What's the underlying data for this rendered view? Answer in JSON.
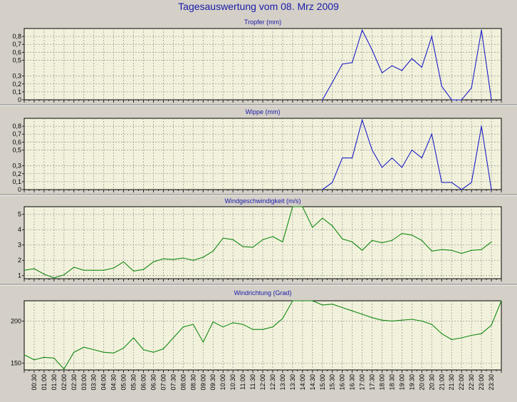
{
  "title": "Tagesauswertung vom 08. Mrz 2009",
  "chart_data": [
    {
      "type": "line",
      "title": "Tropfer (mm)",
      "color": "#1c1cc8",
      "ylim": [
        0,
        0.9
      ],
      "yticks": [
        0,
        0.1,
        0.2,
        0.3,
        0.5,
        0.6,
        0.7,
        0.8
      ],
      "ytick_labels": [
        "0",
        "0,1",
        "0,2",
        "0,3",
        "0,5",
        "0,6",
        "0,7",
        "0,8"
      ],
      "points": [
        [
          "15:00",
          0
        ],
        [
          "15:30",
          0.22
        ],
        [
          "16:00",
          0.45
        ],
        [
          "16:30",
          0.47
        ],
        [
          "17:00",
          0.88
        ],
        [
          "17:30",
          0.63
        ],
        [
          "18:00",
          0.34
        ],
        [
          "18:30",
          0.43
        ],
        [
          "19:00",
          0.37
        ],
        [
          "19:30",
          0.52
        ],
        [
          "20:00",
          0.41
        ],
        [
          "20:30",
          0.8
        ],
        [
          "21:00",
          0.17
        ],
        [
          "21:30",
          0
        ],
        [
          "22:00",
          0
        ],
        [
          "22:30",
          0.15
        ],
        [
          "23:00",
          0.88
        ],
        [
          "23:30",
          0
        ]
      ]
    },
    {
      "type": "line",
      "title": "Wippe (mm)",
      "color": "#1c1cc8",
      "ylim": [
        0,
        0.9
      ],
      "yticks": [
        0,
        0.1,
        0.2,
        0.3,
        0.5,
        0.6,
        0.7,
        0.8
      ],
      "ytick_labels": [
        "0",
        "0,1",
        "0,2",
        "0,3",
        "0,5",
        "0,6",
        "0,7",
        "0,8"
      ],
      "points": [
        [
          "15:00",
          0
        ],
        [
          "15:30",
          0.09
        ],
        [
          "16:00",
          0.4
        ],
        [
          "16:30",
          0.4
        ],
        [
          "17:00",
          0.88
        ],
        [
          "17:30",
          0.5
        ],
        [
          "18:00",
          0.28
        ],
        [
          "18:30",
          0.4
        ],
        [
          "19:00",
          0.28
        ],
        [
          "19:30",
          0.5
        ],
        [
          "20:00",
          0.4
        ],
        [
          "20:30",
          0.7
        ],
        [
          "21:00",
          0.09
        ],
        [
          "21:30",
          0.09
        ],
        [
          "22:00",
          0
        ],
        [
          "22:30",
          0.09
        ],
        [
          "23:00",
          0.8
        ],
        [
          "23:30",
          0
        ]
      ]
    },
    {
      "type": "line",
      "title": "Windgeschwindigkeit (m/s)",
      "color": "#128812",
      "ylim": [
        0.8,
        5.5
      ],
      "yticks": [
        1,
        2,
        3,
        4,
        5
      ],
      "ytick_labels": [
        "1",
        "2",
        "3",
        "4",
        "5"
      ],
      "points": [
        [
          "00:00",
          1.35
        ],
        [
          "00:30",
          1.45
        ],
        [
          "01:00",
          1.1
        ],
        [
          "01:30",
          0.85
        ],
        [
          "02:00",
          1.05
        ],
        [
          "02:30",
          1.55
        ],
        [
          "03:00",
          1.35
        ],
        [
          "03:30",
          1.35
        ],
        [
          "04:00",
          1.35
        ],
        [
          "04:30",
          1.5
        ],
        [
          "05:00",
          1.9
        ],
        [
          "05:30",
          1.3
        ],
        [
          "06:00",
          1.4
        ],
        [
          "06:30",
          1.9
        ],
        [
          "07:00",
          2.1
        ],
        [
          "07:30",
          2.05
        ],
        [
          "08:00",
          2.15
        ],
        [
          "08:30",
          2.0
        ],
        [
          "09:00",
          2.2
        ],
        [
          "09:30",
          2.6
        ],
        [
          "10:00",
          3.45
        ],
        [
          "10:30",
          3.35
        ],
        [
          "11:00",
          2.9
        ],
        [
          "11:30",
          2.85
        ],
        [
          "12:00",
          3.35
        ],
        [
          "12:30",
          3.55
        ],
        [
          "13:00",
          3.2
        ],
        [
          "13:30",
          5.5
        ],
        [
          "14:00",
          5.5
        ],
        [
          "14:30",
          4.15
        ],
        [
          "15:00",
          4.75
        ],
        [
          "15:30",
          4.25
        ],
        [
          "16:00",
          3.4
        ],
        [
          "16:30",
          3.2
        ],
        [
          "17:00",
          2.65
        ],
        [
          "17:30",
          3.3
        ],
        [
          "18:00",
          3.15
        ],
        [
          "18:30",
          3.3
        ],
        [
          "19:00",
          3.75
        ],
        [
          "19:30",
          3.65
        ],
        [
          "20:00",
          3.3
        ],
        [
          "20:30",
          2.6
        ],
        [
          "21:00",
          2.7
        ],
        [
          "21:30",
          2.65
        ],
        [
          "22:00",
          2.45
        ],
        [
          "22:30",
          2.65
        ],
        [
          "23:00",
          2.7
        ],
        [
          "23:30",
          3.2
        ]
      ]
    },
    {
      "type": "line",
      "title": "Windrichtung (Grad)",
      "color": "#128812",
      "ylim": [
        142,
        224
      ],
      "yticks": [
        150,
        200
      ],
      "ytick_labels": [
        "150",
        "200"
      ],
      "points": [
        [
          "00:00",
          160
        ],
        [
          "00:30",
          154
        ],
        [
          "01:00",
          157
        ],
        [
          "01:30",
          156
        ],
        [
          "02:00",
          143
        ],
        [
          "02:30",
          163
        ],
        [
          "03:00",
          169
        ],
        [
          "03:30",
          166
        ],
        [
          "04:00",
          163
        ],
        [
          "04:30",
          162
        ],
        [
          "05:00",
          168
        ],
        [
          "05:30",
          180
        ],
        [
          "06:00",
          166
        ],
        [
          "06:30",
          163
        ],
        [
          "07:00",
          167
        ],
        [
          "07:30",
          180
        ],
        [
          "08:00",
          193
        ],
        [
          "08:30",
          196
        ],
        [
          "09:00",
          175
        ],
        [
          "09:30",
          199
        ],
        [
          "10:00",
          193
        ],
        [
          "10:30",
          198
        ],
        [
          "11:00",
          196
        ],
        [
          "11:30",
          190
        ],
        [
          "12:00",
          190
        ],
        [
          "12:30",
          193
        ],
        [
          "13:00",
          203
        ],
        [
          "13:30",
          224
        ],
        [
          "14:00",
          224
        ],
        [
          "14:30",
          224
        ],
        [
          "15:00",
          219
        ],
        [
          "15:30",
          220
        ],
        [
          "16:00",
          216
        ],
        [
          "16:30",
          212
        ],
        [
          "17:00",
          208
        ],
        [
          "17:30",
          204
        ],
        [
          "18:00",
          201
        ],
        [
          "18:30",
          200
        ],
        [
          "19:00",
          201
        ],
        [
          "19:30",
          202
        ],
        [
          "20:00",
          200
        ],
        [
          "20:30",
          196
        ],
        [
          "21:00",
          185
        ],
        [
          "21:30",
          178
        ],
        [
          "22:00",
          180
        ],
        [
          "22:30",
          183
        ],
        [
          "23:00",
          185
        ],
        [
          "23:30",
          195
        ],
        [
          "24:00",
          224
        ]
      ]
    }
  ],
  "x_tick_labels": [
    "00:30",
    "01:00",
    "01:30",
    "02:00",
    "02:30",
    "03:00",
    "03:30",
    "04:00",
    "04:30",
    "05:00",
    "05:30",
    "06:00",
    "06:30",
    "07:00",
    "07:30",
    "08:00",
    "08:30",
    "09:00",
    "09:30",
    "10:00",
    "10:30",
    "11:00",
    "11:30",
    "12:00",
    "12:30",
    "13:00",
    "13:30",
    "14:00",
    "14:30",
    "15:00",
    "15:30",
    "16:00",
    "16:30",
    "17:00",
    "17:30",
    "18:00",
    "18:30",
    "19:00",
    "19:30",
    "20:00",
    "20:30",
    "21:00",
    "21:30",
    "22:00",
    "22:30",
    "23:00",
    "23:30"
  ]
}
